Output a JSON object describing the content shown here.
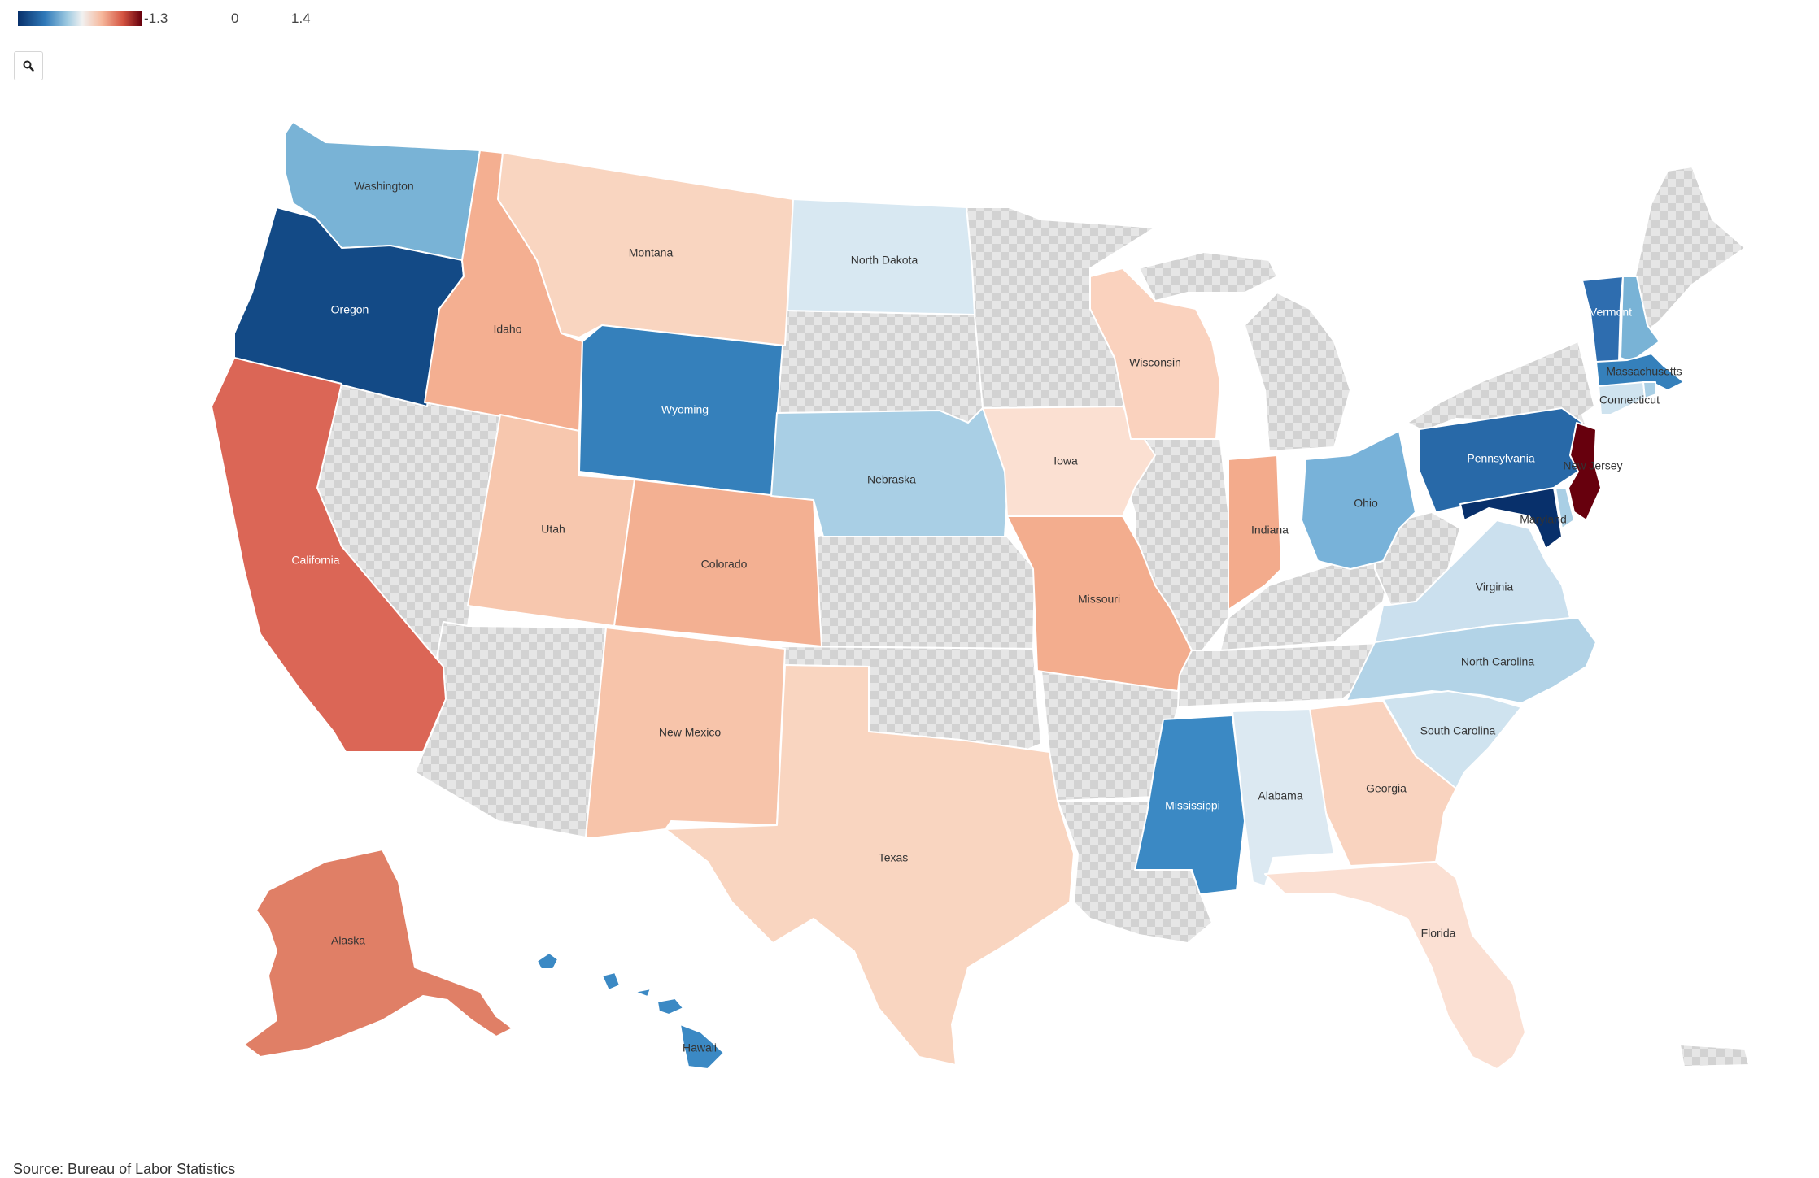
{
  "legend": {
    "min_label": "-1.3",
    "mid_label": "0",
    "max_label": "1.4"
  },
  "search": {
    "icon": "search-icon"
  },
  "source": "Source: Bureau of Labor Statistics",
  "colors": {
    "dark_blue": "#08306b",
    "blue": "#2f79b9",
    "light_blue": "#9ecae1",
    "pale_blue": "#d8e8f2",
    "pale_red": "#fbd8c6",
    "light_red": "#f4ac8c",
    "red": "#d9604c",
    "dark_red": "#67000d",
    "no_data": "#d9d9d9"
  },
  "states": {
    "washington": "Washington",
    "oregon": "Oregon",
    "california": "California",
    "idaho": "Idaho",
    "montana": "Montana",
    "wyoming": "Wyoming",
    "utah": "Utah",
    "colorado": "Colorado",
    "new_mexico": "New Mexico",
    "texas": "Texas",
    "north_dakota": "North Dakota",
    "nebraska": "Nebraska",
    "iowa": "Iowa",
    "missouri": "Missouri",
    "wisconsin": "Wisconsin",
    "indiana": "Indiana",
    "ohio": "Ohio",
    "pennsylvania": "Pennsylvania",
    "new_jersey": "New Jersey",
    "maryland": "Maryland",
    "virginia": "Virginia",
    "north_carolina": "North Carolina",
    "south_carolina": "South Carolina",
    "georgia": "Georgia",
    "alabama": "Alabama",
    "mississippi": "Mississippi",
    "florida": "Florida",
    "vermont": "Vermont",
    "massachusetts": "Massachusetts",
    "connecticut": "Connecticut",
    "alaska": "Alaska",
    "hawaii": "Hawaii"
  }
}
